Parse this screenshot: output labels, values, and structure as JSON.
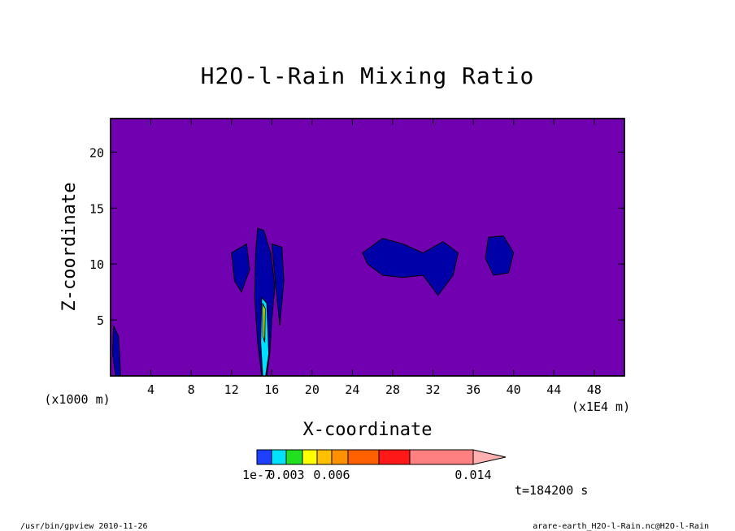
{
  "chart_data": {
    "type": "heatmap",
    "title": "H2O-l-Rain Mixing Ratio",
    "xlabel": "X-coordinate",
    "ylabel": "Z-coordinate",
    "x_unit_left": "(x1000 m)",
    "x_unit_right": "(x1E4 m)",
    "x_ticks": [
      4,
      8,
      12,
      16,
      20,
      24,
      28,
      32,
      36,
      40,
      44,
      48
    ],
    "y_ticks": [
      5,
      10,
      15,
      20
    ],
    "xlim": [
      0,
      51
    ],
    "ylim": [
      0,
      23
    ],
    "background_color": "#7000b0",
    "colorbar": {
      "colors": [
        "#1f3fff",
        "#00e0ff",
        "#20e020",
        "#ffff00",
        "#ffc000",
        "#ff9000",
        "#ff6000",
        "#ff1818",
        "#ff8080",
        "#ffb0b0"
      ],
      "labels": [
        "1e-7",
        "0.003",
        "0.006",
        "0.014"
      ]
    },
    "regions": [
      {
        "level": "1e-7",
        "color": "#0000a8",
        "x": [
          14.6,
          15.2,
          15.9,
          16.3,
          16.0,
          15.8,
          15.5,
          15.0,
          14.6,
          14.3,
          14.4
        ],
        "y": [
          13.2,
          13.0,
          11.0,
          8.0,
          5.0,
          2.0,
          0,
          0,
          3.0,
          7.0,
          11.0
        ]
      },
      {
        "level": "1e-7",
        "color": "#0000a8",
        "x": [
          12.0,
          13.5,
          13.8,
          13.0,
          12.3
        ],
        "y": [
          11.0,
          11.8,
          9.5,
          7.5,
          8.5
        ]
      },
      {
        "level": "1e-7",
        "color": "#0000a8",
        "x": [
          16.0,
          17.0,
          17.2,
          16.8,
          16.4
        ],
        "y": [
          11.8,
          11.5,
          8.5,
          4.5,
          8.0
        ]
      },
      {
        "level": "1e-7",
        "color": "#0000a8",
        "x": [
          25.0,
          27.0,
          29.0,
          31.0,
          33.0,
          34.5,
          34.0,
          32.5,
          31.0,
          29.0,
          27.0,
          25.5
        ],
        "y": [
          11.0,
          12.3,
          11.8,
          11.0,
          12.0,
          11.0,
          9.0,
          7.2,
          9.0,
          8.8,
          9.0,
          10.0
        ]
      },
      {
        "level": "1e-7",
        "color": "#0000a8",
        "x": [
          37.5,
          39.0,
          40.0,
          39.5,
          38.0,
          37.2
        ],
        "y": [
          12.4,
          12.5,
          11.0,
          9.2,
          9.0,
          10.5
        ]
      },
      {
        "level": "1e-7",
        "color": "#0000a8",
        "x": [
          0.3,
          0.8,
          1.0,
          0.5,
          0.2
        ],
        "y": [
          4.5,
          3.5,
          0,
          0,
          2.0
        ]
      },
      {
        "level": "0.003",
        "color": "#00e0ff",
        "x": [
          15.0,
          15.5,
          15.7,
          15.4,
          15.1,
          14.9
        ],
        "y": [
          7.0,
          6.5,
          2.0,
          0,
          0,
          3.0
        ]
      },
      {
        "level": "0.006",
        "color": "#ffff00",
        "x": [
          15.1,
          15.35,
          15.3,
          15.15
        ],
        "y": [
          6.5,
          6.0,
          3.0,
          3.5
        ]
      }
    ]
  },
  "footer": {
    "time_label": "t=184200 s",
    "left_note": "/usr/bin/gpview  2010-11-26",
    "right_note": "arare-earth_H2O-l-Rain.nc@H2O-l-Rain"
  }
}
